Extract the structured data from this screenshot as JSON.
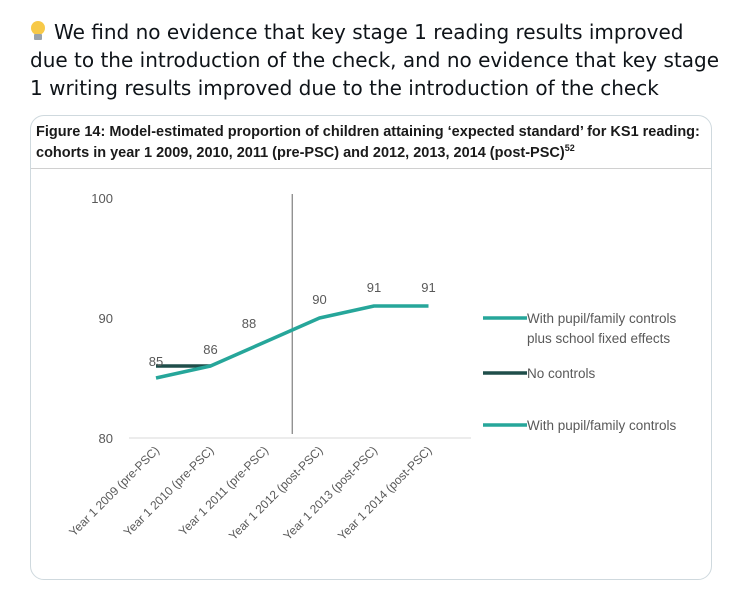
{
  "tweet": {
    "bulb_icon": "lightbulb-icon",
    "text": "We find no evidence that key stage 1 reading results improved due to the introduction of the check, and no evidence that key stage 1 writing results improved due to the introduction of the check"
  },
  "figure": {
    "title": "Figure 14: Model-estimated proportion of children attaining ‘expected standard’ for KS1 reading: cohorts in year 1 2009, 2010, 2011 (pre-PSC) and 2012, 2013, 2014 (post-PSC)",
    "title_sup": "52"
  },
  "chart_data": {
    "type": "line",
    "categories": [
      "Year 1 2009 (pre-PSC)",
      "Year 1 2010 (pre-PSC)",
      "Year 1 2011 (pre-PSC)",
      "Year 1 2012 (post-PSC)",
      "Year 1 2013 (post-PSC)",
      "Year 1 2014 (post-PSC)"
    ],
    "ylim": [
      80,
      100
    ],
    "yticks": [
      80,
      90,
      100
    ],
    "vertical_marker_between": [
      "Year 1 2011 (pre-PSC)",
      "Year 1 2012 (post-PSC)"
    ],
    "data_labels": [
      85,
      86,
      88,
      90,
      91,
      91
    ],
    "series": [
      {
        "name": "With pupil/family controls plus school fixed effects",
        "legend_lines": [
          "With pupil/family controls",
          "plus school fixed effects"
        ],
        "color": "#26a69a",
        "values": [
          null,
          null,
          null,
          null,
          null,
          null
        ]
      },
      {
        "name": "No controls",
        "legend_lines": [
          "No controls"
        ],
        "color": "#1f4e4a",
        "values": [
          86,
          86,
          null,
          null,
          null,
          null
        ]
      },
      {
        "name": "With pupil/family controls",
        "legend_lines": [
          "With pupil/family controls"
        ],
        "color": "#26a69a",
        "values": [
          85,
          86,
          88,
          90,
          91,
          91
        ]
      }
    ],
    "legend_position": "right",
    "grid": false
  }
}
